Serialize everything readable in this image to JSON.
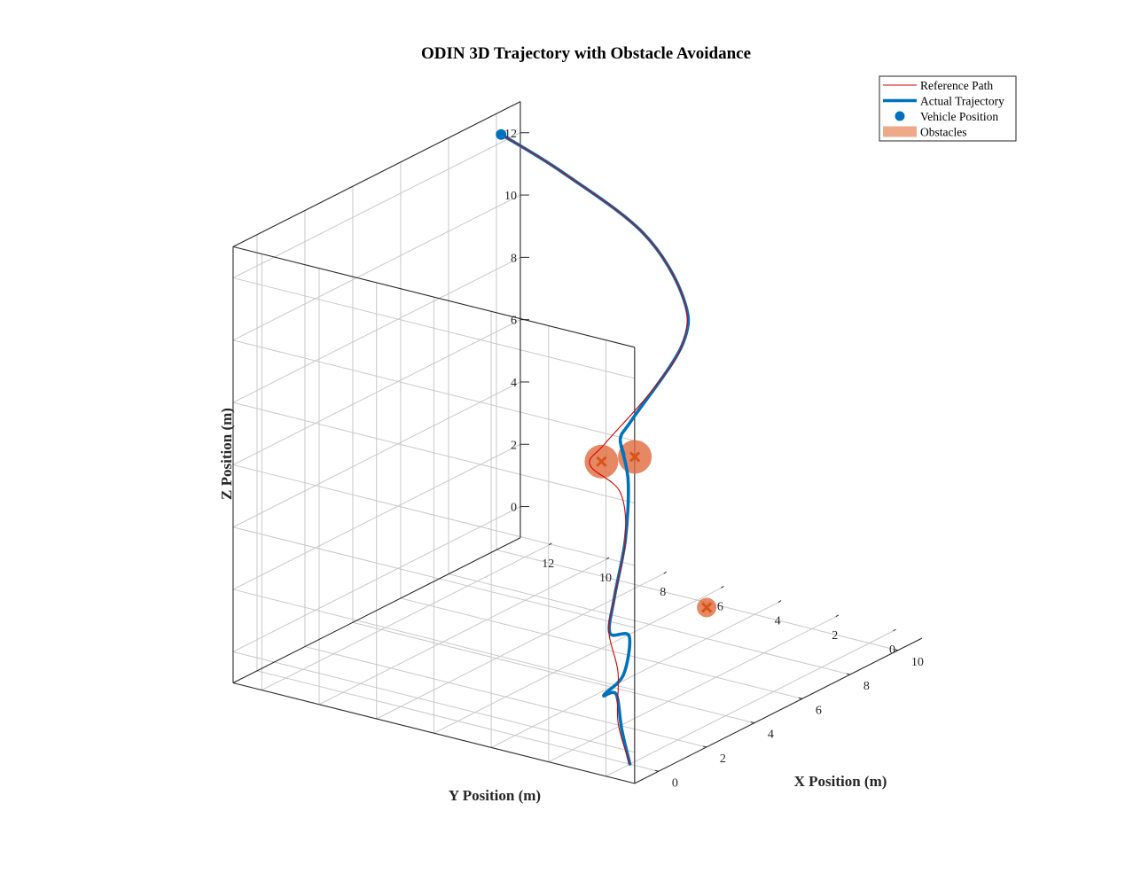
{
  "chart_data": {
    "type": "line3d",
    "title": "ODIN 3D Trajectory with Obstacle Avoidance",
    "xlabel": "X Position (m)",
    "ylabel": "Y Position (m)",
    "zlabel": "Z Position (m)",
    "xlim": [
      -1,
      11
    ],
    "ylim": [
      -1,
      13
    ],
    "zlim": [
      -1,
      13
    ],
    "grid": true,
    "legend_position": "top-right",
    "x_ticks": [
      "0",
      "2",
      "4",
      "6",
      "8",
      "10"
    ],
    "y_ticks": [
      "0",
      "2",
      "4",
      "6",
      "8",
      "10",
      "12"
    ],
    "z_ticks": [
      "0",
      "2",
      "4",
      "6",
      "8",
      "10",
      "12"
    ],
    "legend": [
      {
        "label": "Reference Path",
        "kind": "line",
        "color": "#d40000"
      },
      {
        "label": "Actual Trajectory",
        "kind": "thick-line",
        "color": "#0072bd"
      },
      {
        "label": "Vehicle Position",
        "kind": "marker",
        "color": "#0072bd"
      },
      {
        "label": "Obstacles",
        "kind": "patch",
        "color": "#eeaa88"
      }
    ],
    "colors": {
      "reference": "#d40000",
      "actual": "#0072bd",
      "vehicle": "#0072bd",
      "obstacle_fill": "#e06a3c",
      "obstacle_marker": "#d95319"
    },
    "obstacles": [
      {
        "x": 8.0,
        "y": 4.0,
        "z": 0.0
      },
      {
        "x": 6.0,
        "y": 6.0,
        "z": 5.0
      },
      {
        "x": 5.0,
        "y": 4.0,
        "z": 6.0
      }
    ],
    "reference_path": [
      [
        0.0,
        0.0,
        -1.0
      ],
      [
        1.3,
        1.5,
        -0.5
      ],
      [
        2.5,
        2.5,
        0.4
      ],
      [
        3.2,
        3.4,
        1.2
      ],
      [
        4.5,
        4.3,
        1.6
      ],
      [
        5.8,
        5.0,
        2.8
      ],
      [
        6.3,
        5.6,
        4.0
      ],
      [
        6.0,
        6.4,
        4.8
      ],
      [
        5.3,
        5.3,
        6.0
      ],
      [
        6.0,
        4.3,
        7.6
      ],
      [
        6.5,
        3.6,
        9.1
      ],
      [
        6.9,
        3.9,
        10.4
      ],
      [
        7.5,
        5.8,
        11.8
      ],
      [
        8.0,
        9.0,
        12.8
      ],
      [
        8.4,
        11.5,
        13.3
      ]
    ],
    "actual_trajectory": [
      [
        0.0,
        0.0,
        -1.0
      ],
      [
        1.1,
        1.2,
        -0.6
      ],
      [
        2.3,
        2.4,
        -0.2
      ],
      [
        3.1,
        3.5,
        -0.8
      ],
      [
        3.8,
        3.4,
        -0.4
      ],
      [
        3.8,
        3.2,
        0.9
      ],
      [
        3.0,
        3.2,
        1.3
      ],
      [
        4.5,
        4.3,
        1.6
      ],
      [
        5.8,
        5.0,
        2.8
      ],
      [
        7.0,
        5.9,
        4.0
      ],
      [
        7.3,
        6.4,
        4.9
      ],
      [
        5.5,
        4.8,
        5.7
      ],
      [
        5.0,
        4.5,
        6.5
      ],
      [
        4.3,
        3.5,
        7.6
      ],
      [
        6.5,
        3.6,
        9.1
      ],
      [
        6.9,
        3.9,
        10.4
      ],
      [
        7.5,
        5.8,
        11.8
      ],
      [
        8.0,
        9.0,
        12.8
      ],
      [
        8.4,
        11.5,
        13.3
      ]
    ],
    "vehicle_position": {
      "x": 8.4,
      "y": 11.5,
      "z": 13.3
    }
  }
}
